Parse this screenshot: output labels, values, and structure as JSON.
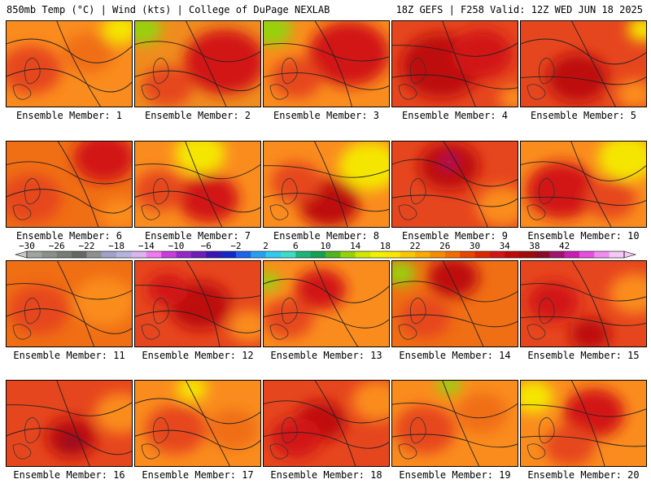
{
  "header": {
    "left": "850mb Temp (°C) | Wind (kts) | College of DuPage NEXLAB",
    "right": "18Z GEFS | F258 Valid: 12Z WED JUN 18 2025"
  },
  "colorbar": {
    "labels": [
      "−30",
      "−26",
      "−22",
      "−18",
      "−14",
      "−10",
      "−6",
      "−2",
      "2",
      "6",
      "10",
      "14",
      "18",
      "22",
      "26",
      "30",
      "34",
      "38",
      "42"
    ],
    "colors": [
      "#a0a4a0",
      "#8c908c",
      "#787c78",
      "#646864",
      "#909090",
      "#a0a0c8",
      "#b4b4dc",
      "#dcb4f0",
      "#f078f0",
      "#c83cdc",
      "#9628c8",
      "#6e1eb4",
      "#3c14b4",
      "#1428c8",
      "#1e64e6",
      "#28a0f0",
      "#32c8f0",
      "#3cdcc8",
      "#1eb478",
      "#14a050",
      "#50b41e",
      "#96d20a",
      "#d2e600",
      "#f0f000",
      "#fae600",
      "#fac800",
      "#faaa00",
      "#f58c00",
      "#f06e00",
      "#e64600",
      "#dc2800",
      "#d21414",
      "#be0a0a",
      "#a00a0a",
      "#8c0a28",
      "#a0146e",
      "#c81eb4",
      "#e650dc",
      "#f08cf0",
      "#f5c8f5"
    ]
  },
  "panels": [
    {
      "label": "Ensemble Member: 1",
      "bg": "#fa8c1e",
      "blobs": [
        {
          "c": "#e6461e",
          "x": 30,
          "y": 60,
          "r": 30
        },
        {
          "c": "#f06e14",
          "x": 100,
          "y": 40,
          "r": 25
        },
        {
          "c": "#f5e600",
          "x": 140,
          "y": 10,
          "r": 18
        }
      ]
    },
    {
      "label": "Ensemble Member: 2",
      "bg": "#f08c1e",
      "blobs": [
        {
          "c": "#d21414",
          "x": 110,
          "y": 50,
          "r": 40
        },
        {
          "c": "#96d20a",
          "x": 10,
          "y": 10,
          "r": 18
        },
        {
          "c": "#e6461e",
          "x": 40,
          "y": 80,
          "r": 25
        }
      ]
    },
    {
      "label": "Ensemble Member: 3",
      "bg": "#fa8c1e",
      "blobs": [
        {
          "c": "#d21414",
          "x": 105,
          "y": 40,
          "r": 40
        },
        {
          "c": "#96d20a",
          "x": 10,
          "y": 10,
          "r": 20
        },
        {
          "c": "#e6461e",
          "x": 40,
          "y": 70,
          "r": 25
        }
      ]
    },
    {
      "label": "Ensemble Member: 4",
      "bg": "#e6461e",
      "blobs": [
        {
          "c": "#be0a0a",
          "x": 60,
          "y": 55,
          "r": 40
        },
        {
          "c": "#d21414",
          "x": 110,
          "y": 40,
          "r": 30
        },
        {
          "c": "#fa8c1e",
          "x": 150,
          "y": 95,
          "r": 15
        }
      ]
    },
    {
      "label": "Ensemble Member: 5",
      "bg": "#e6461e",
      "blobs": [
        {
          "c": "#be0a0a",
          "x": 70,
          "y": 70,
          "r": 30
        },
        {
          "c": "#f5e600",
          "x": 150,
          "y": 10,
          "r": 15
        },
        {
          "c": "#fa8c1e",
          "x": 140,
          "y": 90,
          "r": 18
        }
      ]
    },
    {
      "label": "Ensemble Member: 6",
      "bg": "#f06e14",
      "blobs": [
        {
          "c": "#d21414",
          "x": 120,
          "y": 20,
          "r": 30
        },
        {
          "c": "#e6461e",
          "x": 30,
          "y": 70,
          "r": 30
        },
        {
          "c": "#fa8c1e",
          "x": 140,
          "y": 90,
          "r": 20
        }
      ]
    },
    {
      "label": "Ensemble Member: 7",
      "bg": "#fa8c1e",
      "blobs": [
        {
          "c": "#d21414",
          "x": 90,
          "y": 70,
          "r": 30
        },
        {
          "c": "#f5e600",
          "x": 80,
          "y": 15,
          "r": 25
        },
        {
          "c": "#e6461e",
          "x": 30,
          "y": 60,
          "r": 25
        }
      ]
    },
    {
      "label": "Ensemble Member: 8",
      "bg": "#fa8c1e",
      "blobs": [
        {
          "c": "#be0a0a",
          "x": 80,
          "y": 75,
          "r": 30
        },
        {
          "c": "#f5e600",
          "x": 130,
          "y": 30,
          "r": 30
        },
        {
          "c": "#e6461e",
          "x": 40,
          "y": 50,
          "r": 25
        }
      ]
    },
    {
      "label": "Ensemble Member: 9",
      "bg": "#e6461e",
      "blobs": [
        {
          "c": "#be0a0a",
          "x": 70,
          "y": 30,
          "r": 30
        },
        {
          "c": "#a0146e",
          "x": 70,
          "y": 25,
          "r": 7
        },
        {
          "c": "#fa8c1e",
          "x": 135,
          "y": 80,
          "r": 25
        }
      ]
    },
    {
      "label": "Ensemble Member: 10",
      "bg": "#fa8c1e",
      "blobs": [
        {
          "c": "#d21414",
          "x": 50,
          "y": 60,
          "r": 35
        },
        {
          "c": "#f5e600",
          "x": 130,
          "y": 20,
          "r": 28
        },
        {
          "c": "#e6461e",
          "x": 110,
          "y": 70,
          "r": 25
        }
      ]
    },
    {
      "label": "Ensemble Member: 11",
      "bg": "#f06e14",
      "blobs": [
        {
          "c": "#e6461e",
          "x": 40,
          "y": 60,
          "r": 30
        },
        {
          "c": "#fa8c1e",
          "x": 120,
          "y": 50,
          "r": 30
        }
      ]
    },
    {
      "label": "Ensemble Member: 12",
      "bg": "#e6461e",
      "blobs": [
        {
          "c": "#be0a0a",
          "x": 80,
          "y": 55,
          "r": 30
        },
        {
          "c": "#fa8c1e",
          "x": 140,
          "y": 80,
          "r": 20
        },
        {
          "c": "#d21414",
          "x": 40,
          "y": 35,
          "r": 20
        }
      ]
    },
    {
      "label": "Ensemble Member: 13",
      "bg": "#fa8c1e",
      "blobs": [
        {
          "c": "#d21414",
          "x": 70,
          "y": 35,
          "r": 25
        },
        {
          "c": "#96d20a",
          "x": 5,
          "y": 25,
          "r": 12
        },
        {
          "c": "#e6461e",
          "x": 30,
          "y": 70,
          "r": 25
        }
      ]
    },
    {
      "label": "Ensemble Member: 14",
      "bg": "#f06e14",
      "blobs": [
        {
          "c": "#be0a0a",
          "x": 75,
          "y": 20,
          "r": 25
        },
        {
          "c": "#96d20a",
          "x": 10,
          "y": 15,
          "r": 15
        },
        {
          "c": "#e6461e",
          "x": 40,
          "y": 70,
          "r": 25
        }
      ]
    },
    {
      "label": "Ensemble Member: 15",
      "bg": "#e6461e",
      "blobs": [
        {
          "c": "#be0a0a",
          "x": 85,
          "y": 90,
          "r": 20
        },
        {
          "c": "#fa8c1e",
          "x": 140,
          "y": 40,
          "r": 25
        },
        {
          "c": "#d21414",
          "x": 40,
          "y": 50,
          "r": 25
        }
      ]
    },
    {
      "label": "Ensemble Member: 16",
      "bg": "#e6461e",
      "blobs": [
        {
          "c": "#be0a0a",
          "x": 80,
          "y": 70,
          "r": 25
        },
        {
          "c": "#8c0a28",
          "x": 80,
          "y": 75,
          "r": 10
        },
        {
          "c": "#fa8c1e",
          "x": 140,
          "y": 40,
          "r": 25
        }
      ]
    },
    {
      "label": "Ensemble Member: 17",
      "bg": "#fa8c1e",
      "blobs": [
        {
          "c": "#e6461e",
          "x": 50,
          "y": 60,
          "r": 30
        },
        {
          "c": "#f5e600",
          "x": 70,
          "y": 10,
          "r": 15
        },
        {
          "c": "#f06e14",
          "x": 120,
          "y": 60,
          "r": 25
        }
      ]
    },
    {
      "label": "Ensemble Member: 18",
      "bg": "#e6461e",
      "blobs": [
        {
          "c": "#be0a0a",
          "x": 70,
          "y": 50,
          "r": 25
        },
        {
          "c": "#fa8c1e",
          "x": 140,
          "y": 25,
          "r": 25
        },
        {
          "c": "#d21414",
          "x": 40,
          "y": 70,
          "r": 25
        }
      ]
    },
    {
      "label": "Ensemble Member: 19",
      "bg": "#fa8c1e",
      "blobs": [
        {
          "c": "#e6461e",
          "x": 40,
          "y": 60,
          "r": 30
        },
        {
          "c": "#96d20a",
          "x": 70,
          "y": 5,
          "r": 12
        },
        {
          "c": "#f06e14",
          "x": 110,
          "y": 40,
          "r": 25
        }
      ]
    },
    {
      "label": "Ensemble Member: 20",
      "bg": "#fa8c1e",
      "blobs": [
        {
          "c": "#d21414",
          "x": 90,
          "y": 40,
          "r": 30
        },
        {
          "c": "#f5e600",
          "x": 15,
          "y": 20,
          "r": 20
        },
        {
          "c": "#e6461e",
          "x": 60,
          "y": 80,
          "r": 25
        }
      ]
    }
  ]
}
